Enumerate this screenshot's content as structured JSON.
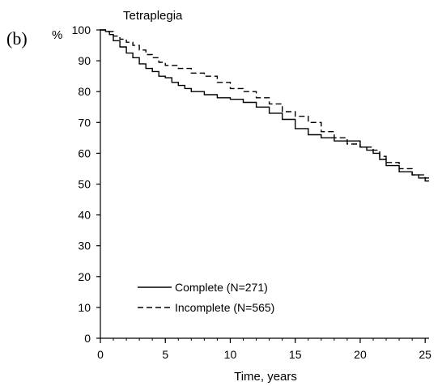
{
  "panel_label": "(b)",
  "ylabel": "%",
  "chart_data": {
    "type": "line",
    "title": "Tetraplegia",
    "xlabel": "Time, years",
    "ylabel": "%",
    "xlim": [
      0,
      25.3
    ],
    "ylim": [
      0,
      100
    ],
    "x_ticks": [
      0,
      5,
      10,
      15,
      20,
      25
    ],
    "y_ticks": [
      0,
      10,
      20,
      30,
      40,
      50,
      60,
      70,
      80,
      90,
      100
    ],
    "grid": false,
    "legend_position": "bottom-left",
    "series": [
      {
        "name": "Complete (N=271)",
        "line_style": "solid",
        "color": "#000000",
        "x": [
          0,
          0.4,
          0.7,
          1.0,
          1.5,
          2.0,
          2.5,
          3.0,
          3.5,
          4.0,
          4.5,
          5.0,
          5.5,
          6.0,
          6.5,
          7.0,
          8.0,
          9.0,
          10.0,
          11.0,
          12.0,
          13.0,
          14.0,
          15.0,
          16.0,
          17.0,
          18.0,
          19.0,
          20.0,
          20.5,
          21.0,
          21.5,
          22.0,
          23.0,
          24.0,
          24.5,
          25.0,
          25.3
        ],
        "values": [
          100,
          99.5,
          98.5,
          96.5,
          94.5,
          92.5,
          91,
          89,
          87.5,
          86.5,
          85,
          84.5,
          83,
          82,
          81,
          80,
          79,
          78,
          77.5,
          76.5,
          75,
          73,
          71,
          68,
          66,
          65,
          64,
          64,
          62,
          61,
          60,
          58,
          56,
          54,
          53,
          52,
          51,
          51
        ]
      },
      {
        "name": "Incomplete (N=565)",
        "line_style": "dashed",
        "color": "#000000",
        "x": [
          0,
          0.5,
          1.0,
          1.5,
          2.0,
          2.5,
          3.0,
          3.5,
          4.0,
          4.5,
          5.0,
          6.0,
          7.0,
          8.0,
          9.0,
          10.0,
          11.0,
          12.0,
          13.0,
          14.0,
          15.0,
          16.0,
          17.0,
          18.0,
          19.0,
          20.0,
          21.0,
          21.5,
          22.0,
          23.0,
          24.0,
          25.0,
          25.3
        ],
        "values": [
          100,
          99.5,
          98,
          97,
          96,
          95,
          93.5,
          92,
          91,
          89.5,
          88.5,
          87.5,
          86,
          85,
          83,
          81,
          80,
          78,
          76,
          73.5,
          72,
          70,
          67,
          65,
          63,
          62,
          61,
          59,
          57,
          55,
          53,
          52,
          52
        ]
      }
    ]
  }
}
